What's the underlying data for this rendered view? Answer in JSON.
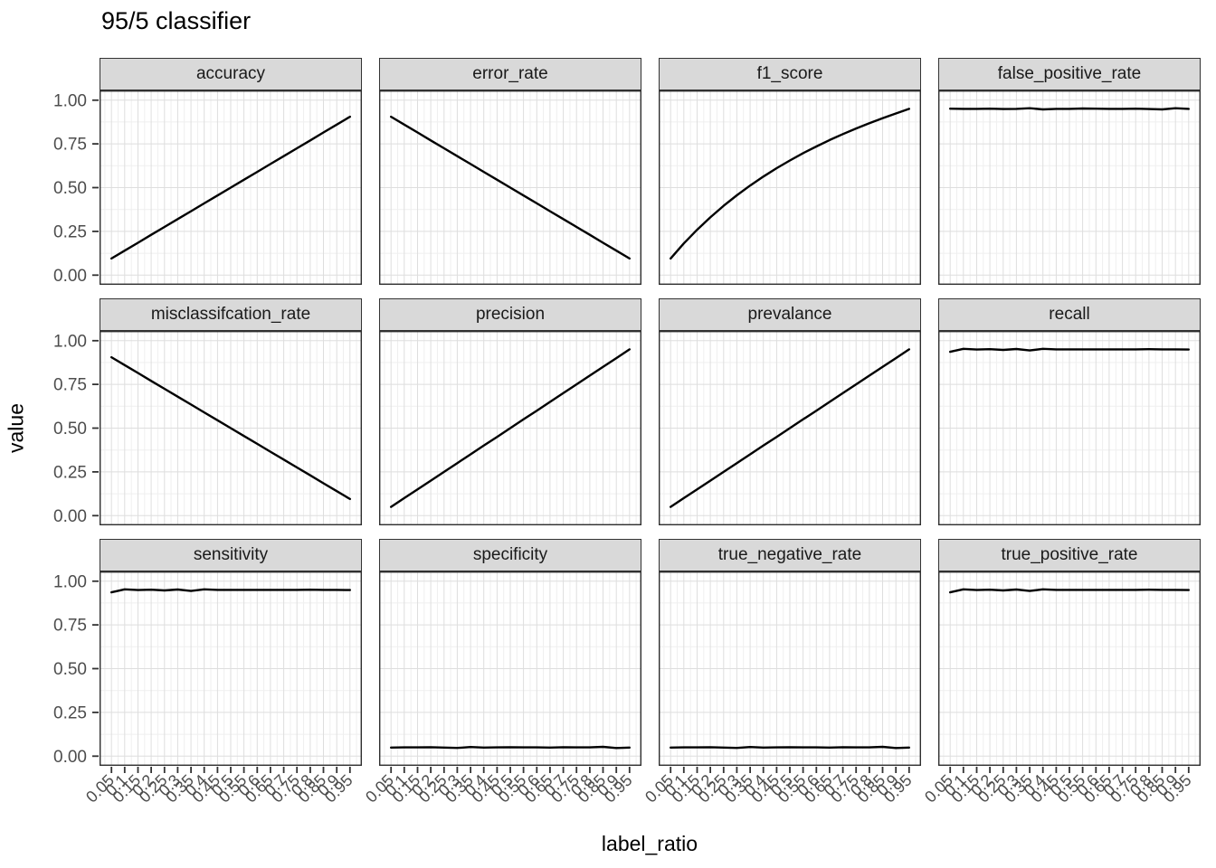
{
  "colors": {
    "line": "#000000",
    "strip_fill": "#d9d9d9",
    "strip_border": "#333333",
    "panel_border": "#2e2e2e",
    "grid_major": "#dedede",
    "grid_minor": "#efefef",
    "tick_label": "#4d4d4d",
    "tick_mark": "#333333",
    "background": "#ffffff"
  },
  "chart_data": {
    "type": "line",
    "title": "95/5 classifier",
    "xlabel": "label_ratio",
    "ylabel": "value",
    "grid": true,
    "legend": "none",
    "facet_layout": {
      "rows": 3,
      "cols": 4
    },
    "xlim": [
      0.05,
      0.95
    ],
    "ylim": [
      0.0,
      1.0
    ],
    "x": [
      0.05,
      0.1,
      0.15,
      0.2,
      0.25,
      0.3,
      0.35,
      0.4,
      0.45,
      0.5,
      0.55,
      0.6,
      0.65,
      0.7,
      0.75,
      0.8,
      0.85,
      0.9,
      0.95
    ],
    "x_tick_labels": [
      "0.05",
      "0.1",
      "0.15",
      "0.2",
      "0.25",
      "0.3",
      "0.35",
      "0.4",
      "0.45",
      "0.5",
      "0.55",
      "0.6",
      "0.65",
      "0.7",
      "0.75",
      "0.8",
      "0.85",
      "0.9",
      "0.95"
    ],
    "y_ticks": [
      {
        "label": "0.00",
        "value": 0.0
      },
      {
        "label": "0.25",
        "value": 0.25
      },
      {
        "label": "0.50",
        "value": 0.5
      },
      {
        "label": "0.75",
        "value": 0.75
      },
      {
        "label": "1.00",
        "value": 1.0
      }
    ],
    "y_minor_ticks": [
      0.125,
      0.375,
      0.625,
      0.875
    ],
    "facets": [
      {
        "label": "accuracy",
        "values": [
          0.095,
          0.14,
          0.185,
          0.23,
          0.275,
          0.32,
          0.365,
          0.41,
          0.455,
          0.5,
          0.545,
          0.59,
          0.635,
          0.68,
          0.725,
          0.77,
          0.815,
          0.86,
          0.905
        ]
      },
      {
        "label": "error_rate",
        "values": [
          0.905,
          0.86,
          0.815,
          0.77,
          0.725,
          0.68,
          0.635,
          0.59,
          0.545,
          0.5,
          0.455,
          0.41,
          0.365,
          0.32,
          0.275,
          0.23,
          0.185,
          0.14,
          0.095
        ]
      },
      {
        "label": "f1_score",
        "values": [
          0.095,
          0.181,
          0.259,
          0.33,
          0.396,
          0.456,
          0.512,
          0.563,
          0.611,
          0.655,
          0.697,
          0.735,
          0.772,
          0.806,
          0.838,
          0.868,
          0.897,
          0.924,
          0.95
        ]
      },
      {
        "label": "false_positive_rate",
        "values": [
          0.951,
          0.95,
          0.95,
          0.951,
          0.949,
          0.95,
          0.954,
          0.947,
          0.95,
          0.95,
          0.952,
          0.951,
          0.95,
          0.95,
          0.951,
          0.949,
          0.947,
          0.954,
          0.95
        ]
      },
      {
        "label": "misclassifcation_rate",
        "values": [
          0.905,
          0.86,
          0.815,
          0.77,
          0.725,
          0.68,
          0.635,
          0.59,
          0.545,
          0.5,
          0.455,
          0.41,
          0.365,
          0.32,
          0.275,
          0.23,
          0.185,
          0.14,
          0.095
        ]
      },
      {
        "label": "precision",
        "values": [
          0.05,
          0.1,
          0.15,
          0.2,
          0.25,
          0.3,
          0.35,
          0.4,
          0.45,
          0.5,
          0.55,
          0.6,
          0.65,
          0.7,
          0.75,
          0.8,
          0.85,
          0.9,
          0.95
        ]
      },
      {
        "label": "prevalance",
        "values": [
          0.05,
          0.1,
          0.15,
          0.2,
          0.25,
          0.3,
          0.35,
          0.4,
          0.45,
          0.5,
          0.55,
          0.6,
          0.65,
          0.7,
          0.75,
          0.8,
          0.85,
          0.9,
          0.95
        ]
      },
      {
        "label": "recall",
        "values": [
          0.936,
          0.953,
          0.949,
          0.951,
          0.947,
          0.952,
          0.944,
          0.953,
          0.95,
          0.95,
          0.95,
          0.95,
          0.95,
          0.95,
          0.95,
          0.951,
          0.95,
          0.95,
          0.949
        ]
      },
      {
        "label": "sensitivity",
        "values": [
          0.936,
          0.953,
          0.949,
          0.951,
          0.947,
          0.952,
          0.944,
          0.953,
          0.95,
          0.95,
          0.95,
          0.95,
          0.95,
          0.95,
          0.95,
          0.951,
          0.95,
          0.95,
          0.949
        ]
      },
      {
        "label": "specificity",
        "values": [
          0.049,
          0.05,
          0.05,
          0.051,
          0.049,
          0.047,
          0.052,
          0.049,
          0.05,
          0.051,
          0.05,
          0.05,
          0.049,
          0.051,
          0.05,
          0.05,
          0.053,
          0.046,
          0.049
        ]
      },
      {
        "label": "true_negative_rate",
        "values": [
          0.049,
          0.05,
          0.05,
          0.051,
          0.049,
          0.047,
          0.052,
          0.049,
          0.05,
          0.051,
          0.05,
          0.05,
          0.049,
          0.051,
          0.05,
          0.05,
          0.053,
          0.046,
          0.049
        ]
      },
      {
        "label": "true_positive_rate",
        "values": [
          0.936,
          0.953,
          0.949,
          0.951,
          0.947,
          0.952,
          0.944,
          0.953,
          0.95,
          0.95,
          0.95,
          0.95,
          0.95,
          0.95,
          0.95,
          0.951,
          0.95,
          0.95,
          0.949
        ]
      }
    ]
  }
}
